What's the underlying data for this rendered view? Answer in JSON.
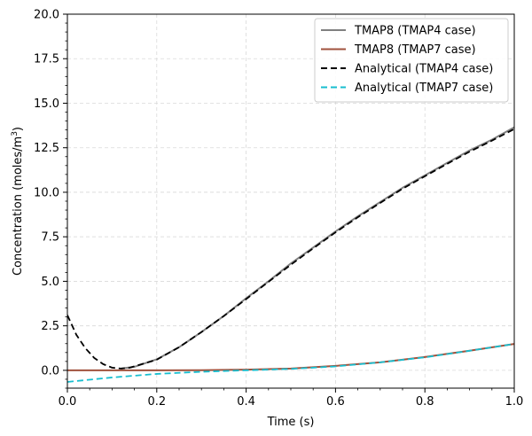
{
  "chart_data": {
    "type": "line",
    "xlabel": "Time (s)",
    "ylabel_main": "Concentration (moles/m",
    "ylabel_sup": "3",
    "ylabel_close": ")",
    "xlim": [
      0,
      1
    ],
    "ylim": [
      -1,
      20
    ],
    "xticks": [
      0,
      0.2,
      0.4,
      0.6,
      0.8,
      1.0
    ],
    "xtick_labels": [
      "0.0",
      "0.2",
      "0.4",
      "0.6",
      "0.8",
      "1.0"
    ],
    "yticks": [
      0,
      2.5,
      5,
      7.5,
      10,
      12.5,
      15,
      17.5,
      20
    ],
    "ytick_labels": [
      "0.0",
      "2.5",
      "5.0",
      "7.5",
      "10.0",
      "12.5",
      "15.0",
      "17.5",
      "20.0"
    ],
    "grid": true,
    "legend_position": "top-right",
    "series": [
      {
        "name": "TMAP8 (TMAP4 case)",
        "color": "#808080",
        "dash": "solid",
        "x": [
          0.12,
          0.15,
          0.2,
          0.25,
          0.3,
          0.35,
          0.4,
          0.45,
          0.5,
          0.55,
          0.6,
          0.65,
          0.7,
          0.75,
          0.8,
          0.85,
          0.9,
          0.95,
          1.0
        ],
        "y": [
          0.1,
          0.2,
          0.62,
          1.3,
          2.15,
          3.05,
          4.05,
          5.0,
          6.0,
          6.9,
          7.8,
          8.65,
          9.45,
          10.25,
          10.95,
          11.65,
          12.35,
          12.95,
          13.65
        ]
      },
      {
        "name": "TMAP8 (TMAP7 case)",
        "color": "#a0523d",
        "dash": "solid",
        "x": [
          0,
          0.1,
          0.2,
          0.3,
          0.4,
          0.5,
          0.6,
          0.7,
          0.8,
          0.9,
          1.0
        ],
        "y": [
          0,
          0,
          0,
          0.01,
          0.04,
          0.1,
          0.25,
          0.45,
          0.75,
          1.1,
          1.48
        ]
      },
      {
        "name": "Analytical (TMAP4 case)",
        "color": "#000000",
        "dash": "dashed",
        "x": [
          0.0,
          0.02,
          0.04,
          0.06,
          0.08,
          0.1,
          0.12,
          0.14,
          0.16,
          0.2,
          0.25,
          0.3,
          0.35,
          0.4,
          0.45,
          0.5,
          0.55,
          0.6,
          0.65,
          0.7,
          0.75,
          0.8,
          0.85,
          0.9,
          0.95,
          1.0
        ],
        "y": [
          3.1,
          2.0,
          1.25,
          0.7,
          0.35,
          0.15,
          0.1,
          0.15,
          0.3,
          0.6,
          1.3,
          2.15,
          3.05,
          4.0,
          4.97,
          5.93,
          6.85,
          7.75,
          8.6,
          9.4,
          10.2,
          10.9,
          11.6,
          12.28,
          12.9,
          13.55
        ]
      },
      {
        "name": "Analytical (TMAP7 case)",
        "color": "#17becf",
        "dash": "dashed",
        "x": [
          0.0,
          0.1,
          0.2,
          0.3,
          0.4,
          0.5,
          0.6,
          0.7,
          0.8,
          0.9,
          1.0
        ],
        "y": [
          -0.65,
          -0.4,
          -0.2,
          -0.08,
          0.0,
          0.08,
          0.22,
          0.45,
          0.73,
          1.1,
          1.48
        ]
      }
    ]
  }
}
